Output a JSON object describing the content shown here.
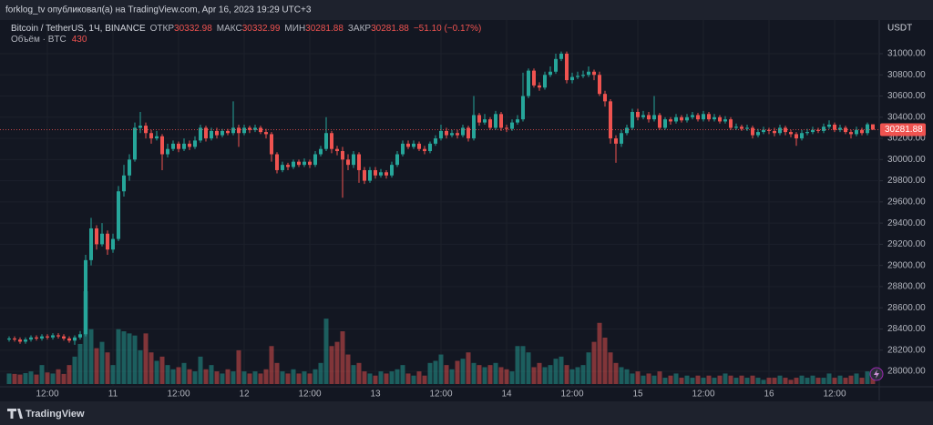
{
  "chart_data": {
    "type": "candlestick",
    "title": "forklog_tv опубликовал(а) на TradingView.com, Apr 16, 2023 19:29 UTC+3",
    "symbol": "Bitcoin / TetherUS, 1Ч, BINANCE",
    "ohlc_labels": {
      "open": "ОТКР",
      "high": "МАКС",
      "low": "МИН",
      "close": "ЗАКР"
    },
    "change": "−51.10 (−0.17%)",
    "volume_label": "Объём · BTC",
    "currency": "USDT",
    "brand": "TradingView",
    "up_color": "#26a69a",
    "down_color": "#ef5350",
    "open": [
      28300,
      28310,
      28300,
      28280,
      28300,
      28320,
      28310,
      28330,
      28320,
      28340,
      28330,
      28310,
      28290,
      28320,
      28350,
      29050,
      29350,
      29200,
      29300,
      29150,
      29250,
      29700,
      29850,
      30000,
      30300,
      30320,
      30250,
      30200,
      30220,
      30050,
      30100,
      30150,
      30100,
      30150,
      30120,
      30180,
      30300,
      30200,
      30270,
      30230,
      30270,
      30250,
      30300,
      30250,
      30300,
      30280,
      30300,
      30260,
      30240,
      30050,
      29900,
      29950,
      29930,
      29980,
      29950,
      29980,
      29950,
      30050,
      30100,
      30250,
      30100,
      30080,
      30000,
      29950,
      30050,
      29900,
      29800,
      29900,
      29850,
      29880,
      29850,
      29950,
      30050,
      30150,
      30120,
      30150,
      30100,
      30080,
      30150,
      30200,
      30270,
      30230,
      30250,
      30230,
      30300,
      30200,
      30420,
      30350,
      30380,
      30300,
      30430,
      30300,
      30290,
      30350,
      30380,
      30600,
      30840,
      30700,
      30680,
      30800,
      30830,
      30950,
      31000,
      30750,
      30780,
      30790,
      30800,
      30830,
      30800,
      30620,
      30550,
      30200,
      30150,
      30250,
      30300,
      30450,
      30400,
      30420,
      30380,
      30420,
      30300,
      30380,
      30360,
      30400,
      30370,
      30400,
      30420,
      30380,
      30430,
      30380,
      30400,
      30360,
      30380,
      30300,
      30310,
      30290,
      30300,
      30230,
      30260,
      30280,
      30270,
      30250,
      30300,
      30260,
      30240,
      30200,
      30250,
      30260,
      30280,
      30270,
      30310,
      30330,
      30280,
      30300,
      30260,
      30240,
      30280,
      30250,
      30332.98
    ],
    "close": [
      28310,
      28300,
      28280,
      28300,
      28320,
      28310,
      28330,
      28320,
      28340,
      28330,
      28310,
      28290,
      28320,
      28350,
      29050,
      29350,
      29200,
      29300,
      29150,
      29250,
      29700,
      29850,
      30000,
      30300,
      30320,
      30250,
      30200,
      30220,
      30050,
      30100,
      30150,
      30100,
      30150,
      30120,
      30180,
      30300,
      30200,
      30270,
      30230,
      30270,
      30250,
      30300,
      30250,
      30300,
      30280,
      30300,
      30260,
      30240,
      30050,
      29900,
      29950,
      29930,
      29980,
      29950,
      29980,
      29950,
      30050,
      30100,
      30250,
      30100,
      30080,
      30000,
      29950,
      30050,
      29900,
      29800,
      29900,
      29850,
      29880,
      29850,
      29950,
      30050,
      30150,
      30120,
      30150,
      30100,
      30080,
      30150,
      30200,
      30270,
      30230,
      30250,
      30230,
      30300,
      30200,
      30420,
      30350,
      30380,
      30300,
      30430,
      30300,
      30290,
      30350,
      30380,
      30600,
      30840,
      30700,
      30680,
      30800,
      30830,
      30950,
      31000,
      30750,
      30780,
      30790,
      30800,
      30830,
      30800,
      30620,
      30550,
      30200,
      30150,
      30250,
      30300,
      30450,
      30400,
      30420,
      30380,
      30420,
      30300,
      30380,
      30360,
      30400,
      30370,
      30400,
      30420,
      30380,
      30430,
      30380,
      30400,
      30360,
      30380,
      30300,
      30310,
      30290,
      30300,
      30230,
      30260,
      30280,
      30270,
      30250,
      30300,
      30260,
      30240,
      30200,
      30250,
      30260,
      30280,
      30270,
      30310,
      30330,
      30280,
      30300,
      30260,
      30240,
      30280,
      30250,
      30332.98,
      30281.88
    ],
    "high": [
      28330,
      28330,
      28320,
      28320,
      28340,
      28340,
      28350,
      28350,
      28360,
      28360,
      28350,
      28330,
      28340,
      28380,
      29100,
      29450,
      29380,
      29400,
      29330,
      29300,
      29750,
      29950,
      30050,
      30350,
      30450,
      30350,
      30280,
      30270,
      30240,
      30150,
      30180,
      30170,
      30200,
      30180,
      30220,
      30330,
      30320,
      30300,
      30300,
      30290,
      30290,
      30550,
      30330,
      30330,
      30320,
      30330,
      30320,
      30290,
      30260,
      30070,
      29980,
      29970,
      30000,
      30000,
      30010,
      30000,
      30080,
      30130,
      30400,
      30270,
      30130,
      30120,
      30050,
      30080,
      30070,
      29930,
      29930,
      29930,
      29910,
      29900,
      29980,
      30080,
      30180,
      30180,
      30180,
      30170,
      30130,
      30170,
      30230,
      30330,
      30300,
      30280,
      30280,
      30330,
      30320,
      30600,
      30440,
      30430,
      30400,
      30460,
      30450,
      30330,
      30380,
      30420,
      30820,
      30860,
      30860,
      30730,
      30830,
      30880,
      31000,
      31020,
      31020,
      30820,
      30830,
      30840,
      30880,
      30850,
      30830,
      30650,
      30570,
      30230,
      30280,
      30330,
      30480,
      30480,
      30460,
      30450,
      30600,
      30440,
      30400,
      30400,
      30430,
      30420,
      30430,
      30450,
      30440,
      30460,
      30450,
      30430,
      30420,
      30410,
      30400,
      30340,
      30330,
      30330,
      30320,
      30290,
      30310,
      30300,
      30300,
      30330,
      30320,
      30280,
      30260,
      30280,
      30290,
      30310,
      30300,
      30340,
      30370,
      30350,
      30330,
      30320,
      30280,
      30310,
      30300,
      30350,
      30332.99
    ],
    "low": [
      28280,
      28280,
      28260,
      28260,
      28280,
      28290,
      28290,
      28300,
      28300,
      28310,
      28290,
      28270,
      28250,
      28300,
      28330,
      29000,
      29150,
      29180,
      29100,
      29120,
      29230,
      29650,
      29800,
      29980,
      30250,
      30200,
      30150,
      30180,
      29900,
      30020,
      30080,
      30070,
      30080,
      30090,
      30100,
      30160,
      30170,
      30180,
      30200,
      30210,
      30230,
      30230,
      30120,
      30230,
      30250,
      30260,
      30240,
      30200,
      29980,
      29870,
      29880,
      29900,
      29910,
      29930,
      29930,
      29920,
      29930,
      30030,
      30080,
      30060,
      30040,
      29640,
      29900,
      29920,
      29780,
      29770,
      29780,
      29820,
      29830,
      29820,
      29830,
      29930,
      30030,
      30100,
      30100,
      30080,
      30050,
      30060,
      30130,
      30180,
      30200,
      30210,
      30200,
      30210,
      30170,
      30180,
      30320,
      30330,
      30280,
      30280,
      30270,
      30260,
      30270,
      30330,
      30360,
      30580,
      30680,
      30650,
      30660,
      30780,
      30810,
      30930,
      30720,
      30720,
      30760,
      30770,
      30780,
      30750,
      30600,
      30500,
      30150,
      29970,
      30120,
      30230,
      30280,
      30370,
      30380,
      30350,
      30360,
      30280,
      30280,
      30330,
      30340,
      30350,
      30350,
      30380,
      30360,
      30360,
      30360,
      30360,
      30340,
      30340,
      30280,
      30280,
      30270,
      30270,
      30200,
      30210,
      30240,
      30240,
      30220,
      30230,
      30230,
      30210,
      30130,
      30180,
      30230,
      30240,
      30250,
      30250,
      30290,
      30260,
      30260,
      30240,
      30200,
      30220,
      30230,
      30230,
      30281.88
    ],
    "volume": [
      500,
      480,
      450,
      520,
      600,
      450,
      900,
      550,
      500,
      700,
      480,
      900,
      1300,
      1900,
      4400,
      2600,
      1700,
      2000,
      1500,
      900,
      2600,
      2500,
      2400,
      2300,
      1600,
      2400,
      1500,
      1100,
      1300,
      900,
      700,
      800,
      1000,
      700,
      600,
      1300,
      700,
      900,
      600,
      500,
      700,
      600,
      1600,
      600,
      500,
      600,
      500,
      700,
      1800,
      1000,
      600,
      500,
      700,
      500,
      600,
      500,
      700,
      1000,
      3100,
      1800,
      2000,
      2500,
      1400,
      900,
      1000,
      600,
      500,
      400,
      600,
      500,
      600,
      700,
      900,
      500,
      400,
      600,
      400,
      1000,
      1100,
      1400,
      900,
      700,
      1100,
      1200,
      1500,
      1000,
      900,
      800,
      900,
      1000,
      800,
      700,
      600,
      1800,
      1800,
      1500,
      800,
      1000,
      800,
      900,
      1200,
      1300,
      900,
      700,
      800,
      900,
      1500,
      2000,
      2900,
      2200,
      1500,
      1000,
      800,
      700,
      500,
      600,
      400,
      500,
      400,
      600,
      300,
      400,
      500,
      300,
      400,
      300,
      400,
      300,
      400,
      300,
      400,
      500,
      400,
      300,
      400,
      300,
      400,
      300,
      200,
      300,
      300,
      400,
      300,
      200,
      300,
      400,
      300,
      400,
      300,
      300,
      500,
      300,
      400,
      300,
      400,
      500,
      300,
      600,
      430
    ],
    "ylim": [
      27725,
      31318
    ],
    "yticks": [
      {
        "value": 28000,
        "label": "28000.00"
      },
      {
        "value": 28200,
        "label": "28200.00"
      },
      {
        "value": 28400,
        "label": "28400.00"
      },
      {
        "value": 28600,
        "label": "28600.00"
      },
      {
        "value": 28800,
        "label": "28800.00"
      },
      {
        "value": 29000,
        "label": "29000.00"
      },
      {
        "value": 29200,
        "label": "29200.00"
      },
      {
        "value": 29400,
        "label": "29400.00"
      },
      {
        "value": 29600,
        "label": "29600.00"
      },
      {
        "value": 29800,
        "label": "29800.00"
      },
      {
        "value": 30000,
        "label": "30000.00"
      },
      {
        "value": 30200,
        "label": "30200.00"
      },
      {
        "value": 30400,
        "label": "30400.00"
      },
      {
        "value": 30600,
        "label": "30600.00"
      },
      {
        "value": 30800,
        "label": "30800.00"
      },
      {
        "value": 31000,
        "label": "31000.00"
      }
    ],
    "xticks": [
      {
        "value": 7,
        "label": "12:00"
      },
      {
        "value": 19,
        "label": "11"
      },
      {
        "value": 31,
        "label": "12:00"
      },
      {
        "value": 43,
        "label": "12"
      },
      {
        "value": 55,
        "label": "12:00"
      },
      {
        "value": 67,
        "label": "13"
      },
      {
        "value": 79,
        "label": "12:00"
      },
      {
        "value": 91,
        "label": "14"
      },
      {
        "value": 103,
        "label": "12:00"
      },
      {
        "value": 115,
        "label": "15"
      },
      {
        "value": 127,
        "label": "12:00"
      },
      {
        "value": 139,
        "label": "16"
      },
      {
        "value": 151,
        "label": "12:00"
      }
    ],
    "grid": true
  }
}
